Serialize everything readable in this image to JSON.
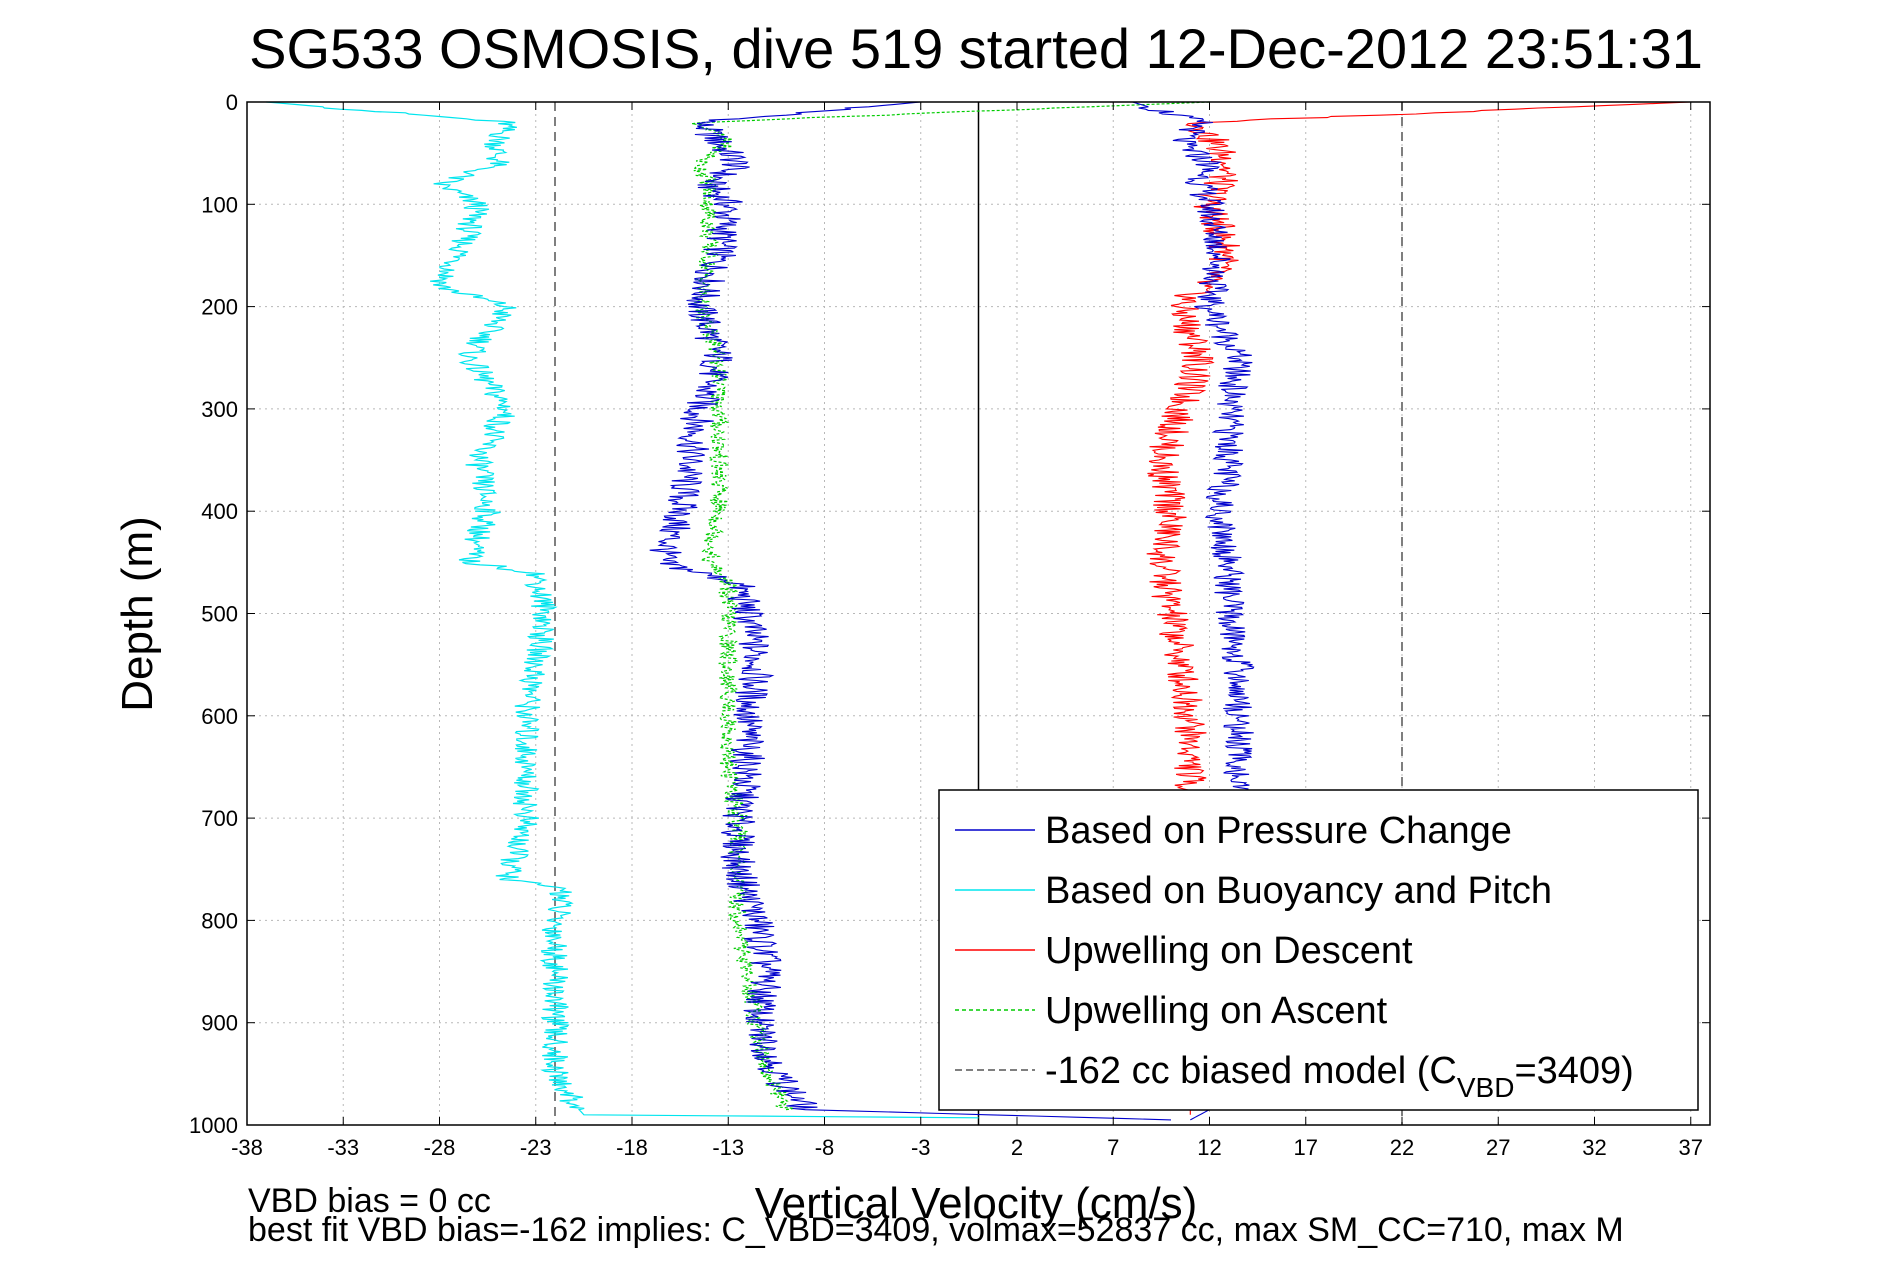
{
  "chart_data": {
    "type": "line",
    "title": "SG533 OSMOSIS, dive 519 started 12-Dec-2012 23:51:31",
    "xlabel": "Vertical Velocity (cm/s)",
    "ylabel": "Depth (m)",
    "xlim": [
      -38,
      38
    ],
    "ylim": [
      1000,
      0
    ],
    "y_reversed": true,
    "grid": true,
    "x_ticks": [
      -38,
      -33,
      -28,
      -23,
      -18,
      -13,
      -8,
      -3,
      2,
      7,
      12,
      17,
      22,
      27,
      32,
      37
    ],
    "y_ticks": [
      0,
      100,
      200,
      300,
      400,
      500,
      600,
      700,
      800,
      900,
      1000
    ],
    "legend_position": "bottom-right",
    "reference_lines": [
      {
        "x": 0.0,
        "style": "solid",
        "color": "#000000"
      },
      {
        "x": -22,
        "style": "dashed",
        "color": "#555555"
      },
      {
        "x": 22,
        "style": "dashed",
        "color": "#555555"
      }
    ],
    "series": [
      {
        "name": "Based on Pressure Change",
        "color": "#0000cc",
        "style": "solid",
        "depth": [
          0,
          20,
          40,
          60,
          80,
          100,
          150,
          200,
          250,
          300,
          350,
          400,
          450,
          470,
          500,
          550,
          600,
          650,
          700,
          750,
          800,
          850,
          900,
          950,
          985,
          995
        ],
        "descent": [
          -3,
          -14.5,
          -13.5,
          -12.5,
          -14,
          -13,
          -13.5,
          -14.5,
          -13.5,
          -14.5,
          -15,
          -15.5,
          -16.5,
          -12.5,
          -12,
          -11.5,
          -12,
          -12,
          -12.5,
          -12.5,
          -11.5,
          -11,
          -11.5,
          -10.5,
          -9,
          10
        ],
        "ascent": [
          8,
          11.5,
          10.5,
          12,
          11.5,
          12,
          12.5,
          12,
          13.5,
          13,
          13,
          12.5,
          13,
          13,
          13,
          13.5,
          13.5,
          13.5,
          13,
          13,
          13,
          13,
          13,
          13,
          12,
          11
        ]
      },
      {
        "name": "Based on Buoyancy and Pitch",
        "color": "#00e5ee",
        "style": "solid",
        "depth": [
          0,
          20,
          40,
          60,
          80,
          100,
          150,
          180,
          200,
          250,
          300,
          350,
          400,
          450,
          460,
          500,
          550,
          600,
          650,
          700,
          760,
          770,
          800,
          850,
          900,
          950,
          980,
          990,
          993
        ],
        "descent": [
          -37,
          -24.5,
          -25,
          -25,
          -28,
          -26,
          -27,
          -28,
          -24.5,
          -26.5,
          -24.5,
          -26,
          -25.5,
          -26.5,
          -23,
          -22.5,
          -23,
          -23.5,
          -23.5,
          -23.5,
          -24.5,
          -21.5,
          -22,
          -22,
          -22,
          -22,
          -21,
          -20.5,
          0
        ]
      },
      {
        "name": "Upwelling on Descent",
        "color": "#ff0000",
        "style": "solid",
        "depth": [
          0,
          20,
          60,
          100,
          150,
          200,
          250,
          300,
          350,
          400,
          450,
          500,
          550,
          600,
          650,
          700,
          800,
          900,
          990
        ],
        "values": [
          37,
          11.5,
          13,
          12,
          13,
          10.5,
          11.5,
          10.5,
          9.5,
          10,
          9.5,
          10,
          10.5,
          11,
          11,
          11,
          11,
          11,
          11
        ]
      },
      {
        "name": "Upwelling on Ascent",
        "color": "#00cc00",
        "style": "dashed",
        "depth": [
          0,
          20,
          40,
          60,
          80,
          100,
          150,
          200,
          250,
          300,
          350,
          400,
          450,
          470,
          500,
          550,
          600,
          650,
          700,
          750,
          800,
          850,
          900,
          950,
          985
        ],
        "values": [
          12,
          -14.5,
          -13,
          -14.5,
          -14,
          -14,
          -14,
          -14.5,
          -13.5,
          -13.5,
          -13.5,
          -13.5,
          -14,
          -13,
          -13,
          -13,
          -13,
          -13,
          -12.5,
          -12.5,
          -12.5,
          -12,
          -11.5,
          -11,
          -10
        ]
      },
      {
        "name": "-162 cc biased model (C",
        "name_subscript": "VBD",
        "name_suffix": "=3409)",
        "color": "#555555",
        "style": "dashed"
      }
    ],
    "annotations": [
      "VBD bias = 0 cc",
      "best fit VBD bias=-162 implies: C_VBD=3409, volmax=52837 cc, max SM_CC=710, max M"
    ]
  }
}
